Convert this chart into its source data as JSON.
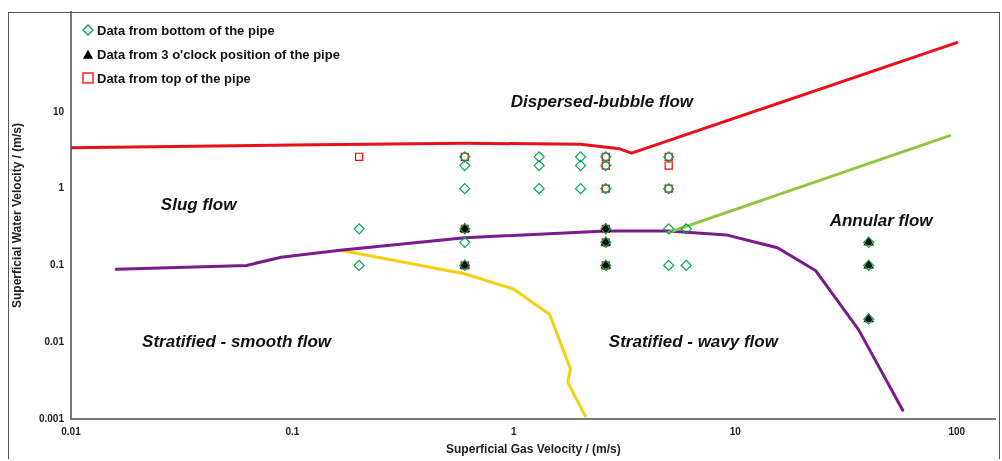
{
  "chart_data": {
    "type": "scatter",
    "xlabel": "Superficial Gas Velocity / (m/s)",
    "ylabel": "Superficial Water Velocity / (m/s)",
    "log": "xy",
    "grid": false,
    "legend": "top left",
    "xlim": [
      0.01,
      150
    ],
    "ylim": [
      0.001,
      200
    ],
    "xticks": [
      0.01,
      0.1,
      1,
      10,
      100
    ],
    "yticks": [
      0.001,
      0.01,
      0.1,
      1,
      10
    ],
    "series": [
      {
        "type": "line",
        "color": "#e8101a",
        "marker": "none",
        "x": [
          0.01,
          0.1,
          0.6,
          2,
          3.0,
          3.4,
          100
        ],
        "values": [
          3.4,
          3.7,
          3.9,
          3.8,
          3.3,
          2.9,
          80
        ]
      },
      {
        "type": "line",
        "color": "#8dc63f",
        "marker": "none",
        "x": [
          5,
          93
        ],
        "values": [
          0.27,
          4.9
        ]
      },
      {
        "type": "line",
        "color": "#7b1a8c",
        "marker": "none",
        "x": [
          0.016,
          0.062,
          0.089,
          0.164,
          0.6,
          2.6,
          5,
          9.1,
          15.5,
          23,
          36,
          57
        ],
        "values": [
          0.089,
          0.1,
          0.128,
          0.158,
          0.23,
          0.28,
          0.28,
          0.25,
          0.17,
          0.086,
          0.0146,
          0.0013
        ]
      },
      {
        "type": "line",
        "color": "#f5d00f",
        "marker": "none",
        "x": [
          0.164,
          0.6,
          1,
          1.45,
          1.8,
          1.75,
          2.1
        ],
        "values": [
          0.158,
          0.078,
          0.049,
          0.023,
          0.0045,
          0.003,
          0.0011
        ]
      },
      {
        "name": "Data from bottom of the pipe",
        "color": "#00a651",
        "marker": "diamond",
        "x": [
          0.2,
          0.2,
          0.6,
          0.6,
          0.6,
          0.6,
          0.6,
          0.6,
          1.3,
          1.3,
          1.3,
          2,
          2,
          2,
          2.6,
          2.6,
          2.6,
          2.6,
          2.6,
          2.6,
          5,
          5,
          5,
          5,
          6,
          6,
          40,
          40,
          40
        ],
        "values": [
          0.3,
          0.1,
          2.6,
          2,
          1,
          0.3,
          0.2,
          0.1,
          2.6,
          2,
          1,
          2.6,
          2,
          1,
          2.6,
          2,
          1,
          0.3,
          0.2,
          0.1,
          2.6,
          1,
          0.3,
          0.1,
          0.3,
          0.1,
          0.2,
          0.1,
          0.02
        ]
      },
      {
        "name": "Data from 3 o'clock position of the pipe",
        "color": "#000000",
        "marker": "triangle",
        "x": [
          0.6,
          0.6,
          2.6,
          2.6,
          2.6,
          40,
          40,
          40
        ],
        "values": [
          0.3,
          0.1,
          0.3,
          0.2,
          0.1,
          0.2,
          0.1,
          0.02
        ]
      },
      {
        "name": "Data from top of the pipe",
        "color": "#ff0000",
        "marker": "square",
        "x": [
          0.2,
          0.6,
          0.6,
          0.6,
          2.6,
          2.6,
          2.6,
          2.6,
          2.6,
          2.6,
          5,
          5,
          5
        ],
        "values": [
          2.6,
          2.6,
          0.3,
          0.1,
          2.6,
          2,
          1,
          0.3,
          0.2,
          0.1,
          2.6,
          2,
          1
        ]
      }
    ],
    "annotations": [
      "Dispersed-bubble flow",
      "Slug flow",
      "Annular flow",
      "Stratified - smooth flow",
      "Stratified - wavy flow"
    ]
  }
}
